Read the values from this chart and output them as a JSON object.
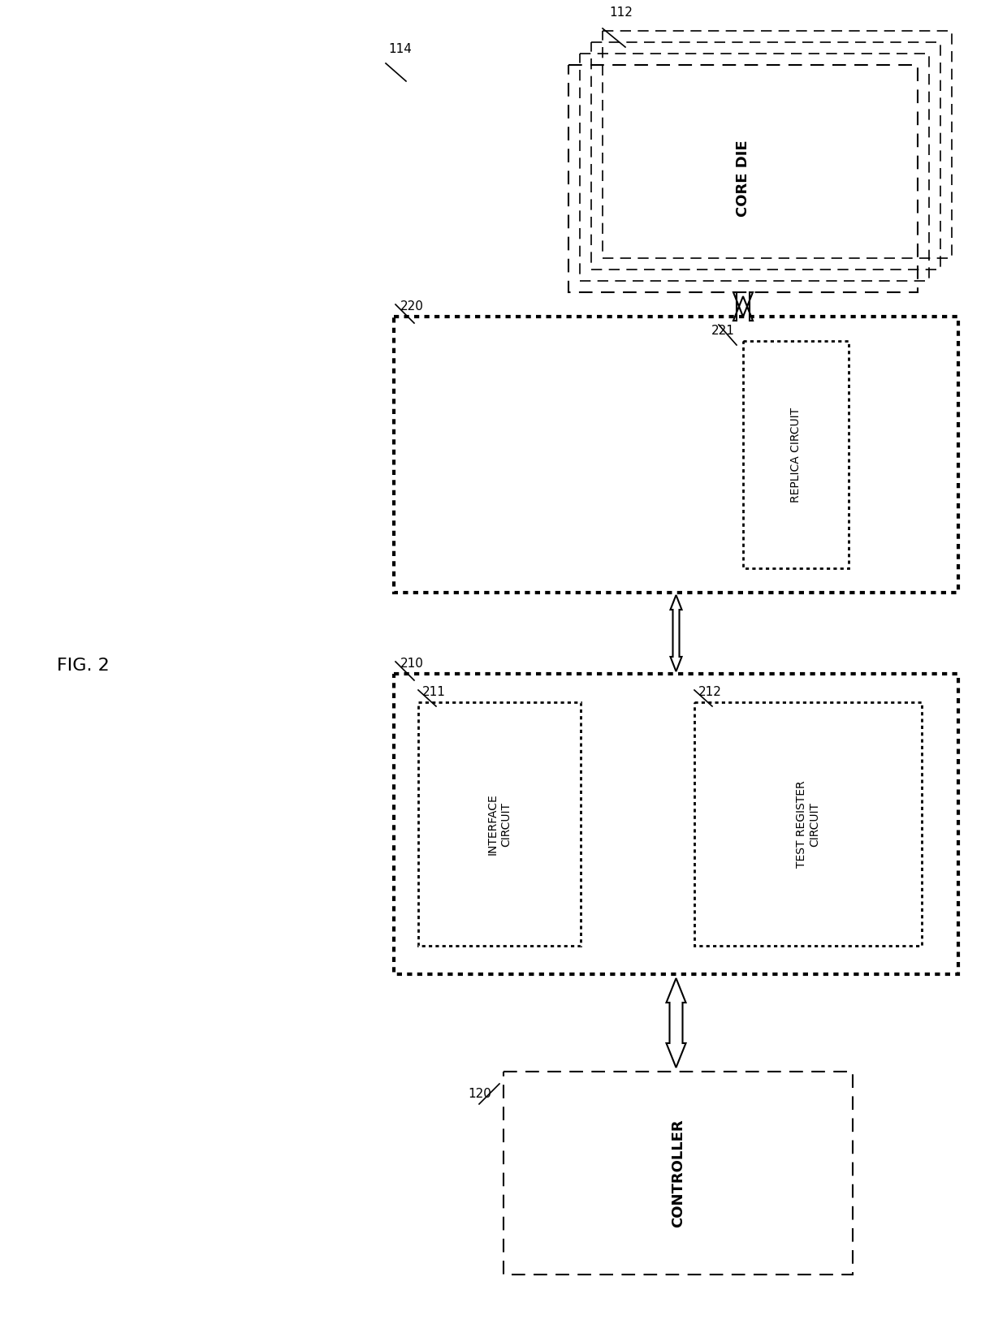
{
  "fig_label": "FIG. 2",
  "bg_color": "#ffffff",
  "label_114": "114",
  "label_112": "112",
  "label_120": "120",
  "label_210": "210",
  "label_211": "211",
  "label_212": "212",
  "label_220": "220",
  "label_221": "221",
  "text_core_die": "CORE DIE",
  "text_controller": "CONTROLLER",
  "text_interface": "INTERFACE\nCIRCUIT",
  "text_test_register": "TEST REGISTER\nCIRCUIT",
  "text_replica": "REPLICA CIRCUIT"
}
